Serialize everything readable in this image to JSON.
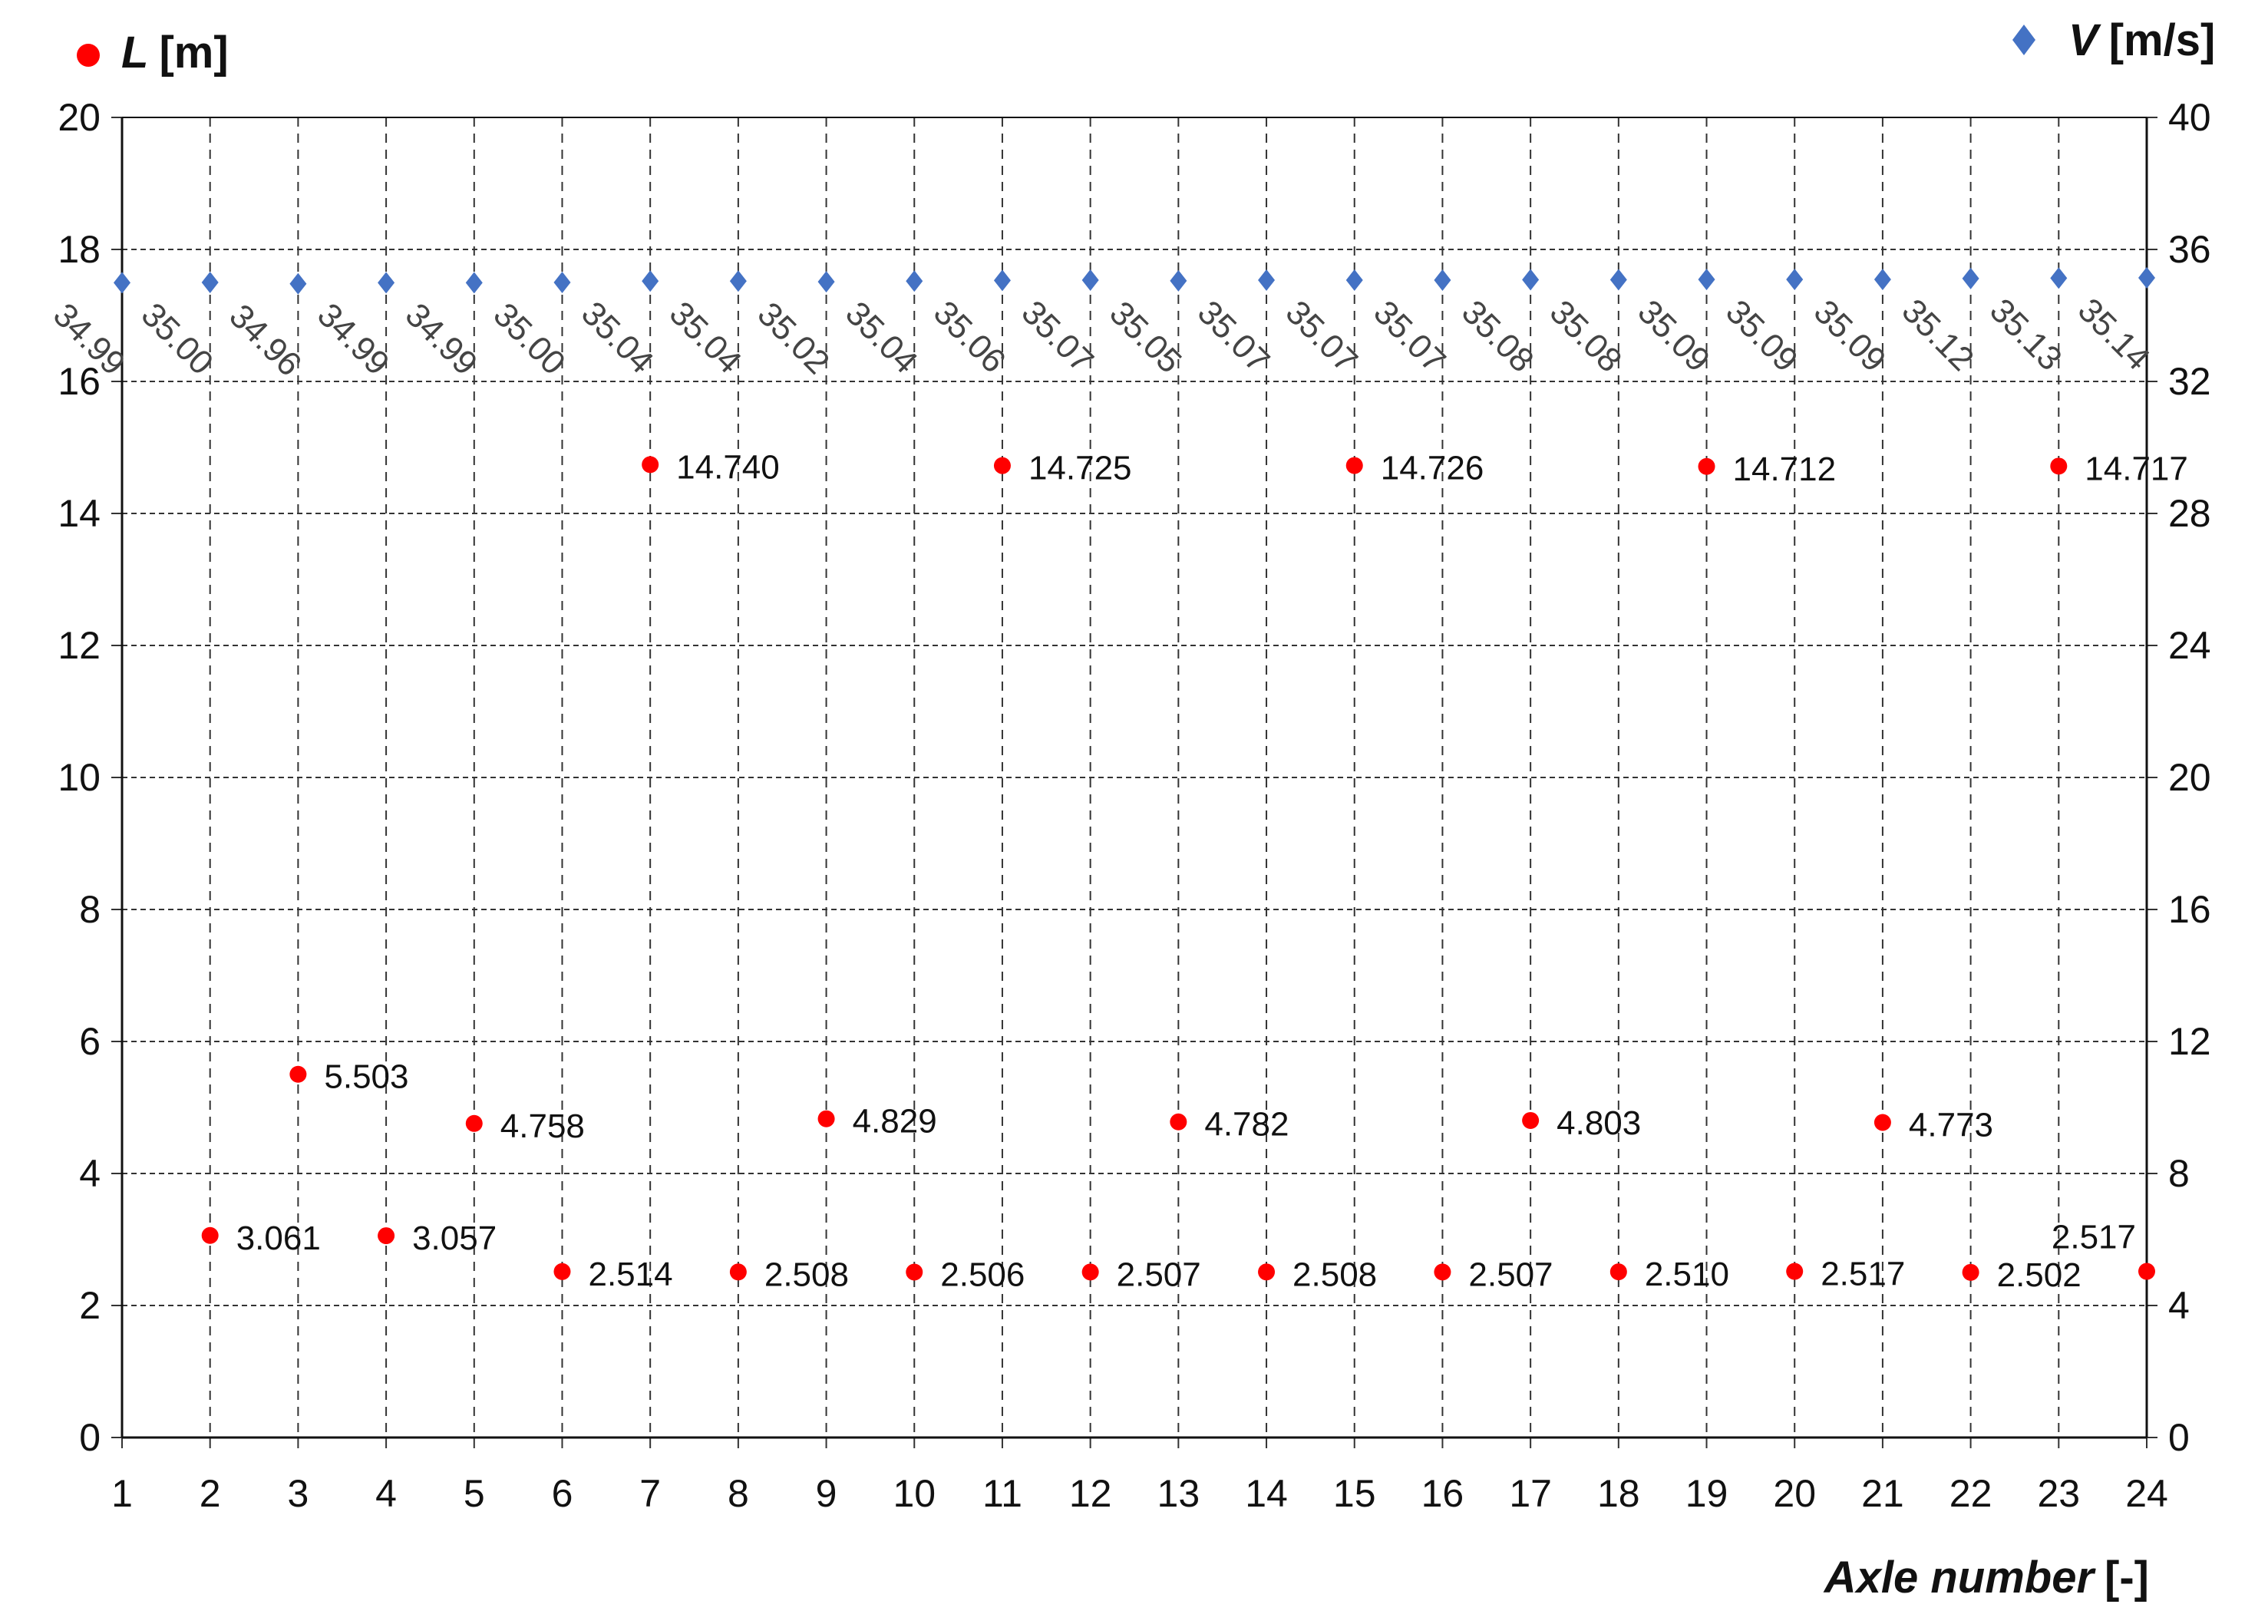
{
  "chart_data": {
    "type": "scatter",
    "xlabel": "Axle number [-]",
    "xlabel_italic_part": "Axle number",
    "xlabel_unit": "[-]",
    "x_ticks": [
      1,
      2,
      3,
      4,
      5,
      6,
      7,
      8,
      9,
      10,
      11,
      12,
      13,
      14,
      15,
      16,
      17,
      18,
      19,
      20,
      21,
      22,
      23,
      24
    ],
    "xlim": [
      1,
      24
    ],
    "y_left": {
      "ylim": [
        0,
        20
      ],
      "ticks": [
        0,
        2,
        4,
        6,
        8,
        10,
        12,
        14,
        16,
        18,
        20
      ]
    },
    "y_right": {
      "ylim": [
        0,
        40
      ],
      "ticks": [
        0,
        4,
        8,
        12,
        16,
        20,
        24,
        28,
        32,
        36,
        40
      ]
    },
    "grid": true,
    "legend_placement": "top",
    "series": [
      {
        "name": "L [m]",
        "name_symbol": "L",
        "name_unit": "[m]",
        "axis": "left",
        "color": "#ff0000",
        "marker": "circle",
        "x": [
          2,
          3,
          4,
          5,
          6,
          7,
          8,
          9,
          10,
          11,
          12,
          13,
          14,
          15,
          16,
          17,
          18,
          19,
          20,
          21,
          22,
          23,
          24
        ],
        "values": [
          3.061,
          5.503,
          3.057,
          4.758,
          2.514,
          14.74,
          2.508,
          4.829,
          2.506,
          14.725,
          2.507,
          4.782,
          2.508,
          14.726,
          2.507,
          4.803,
          2.51,
          14.712,
          2.517,
          4.773,
          2.502,
          14.717,
          2.517
        ],
        "labels": [
          "3.061",
          "5.503",
          "3.057",
          "4.758",
          "2.514",
          "14.740",
          "2.508",
          "4.829",
          "2.506",
          "14.725",
          "2.507",
          "4.782",
          "2.508",
          "14.726",
          "2.507",
          "4.803",
          "2.510",
          "14.712",
          "2.517",
          "4.773",
          "2.502",
          "14.717",
          "2.517"
        ]
      },
      {
        "name": "V [m/s]",
        "name_symbol": "V",
        "name_unit": "[m/s]",
        "axis": "right",
        "color": "#4472c4",
        "marker": "diamond",
        "x": [
          1,
          2,
          3,
          4,
          5,
          6,
          7,
          8,
          9,
          10,
          11,
          12,
          13,
          14,
          15,
          16,
          17,
          18,
          19,
          20,
          21,
          22,
          23,
          24
        ],
        "values": [
          34.99,
          35.0,
          34.96,
          34.99,
          34.99,
          35.0,
          35.04,
          35.04,
          35.02,
          35.04,
          35.06,
          35.07,
          35.05,
          35.07,
          35.07,
          35.07,
          35.08,
          35.08,
          35.09,
          35.09,
          35.09,
          35.12,
          35.13,
          35.14
        ],
        "labels": [
          "34.99",
          "35.00",
          "34.96",
          "34.99",
          "34.99",
          "35.00",
          "35.04",
          "35.04",
          "35.02",
          "35.04",
          "35.06",
          "35.07",
          "35.05",
          "35.07",
          "35.07",
          "35.07",
          "35.08",
          "35.08",
          "35.09",
          "35.09",
          "35.09",
          "35.12",
          "35.13",
          "35.14"
        ]
      }
    ]
  }
}
